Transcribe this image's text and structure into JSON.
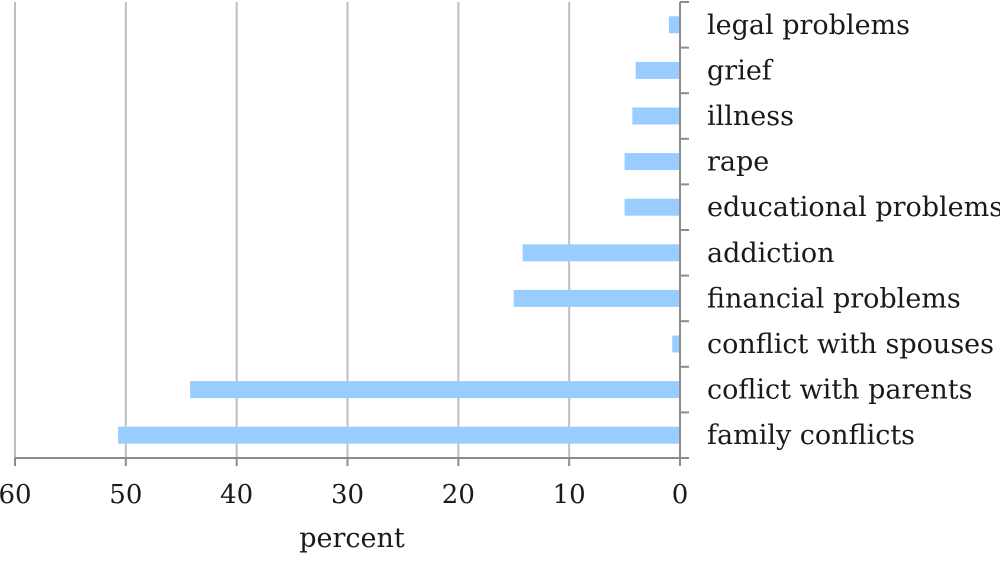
{
  "chart_data": {
    "type": "bar",
    "orientation": "horizontal",
    "x_direction": "reversed",
    "categories": [
      "legal problems",
      "grief",
      "illness",
      "rape",
      "educational problems",
      "addiction",
      "financial problems",
      "conflict with spouses",
      "coflict with parents",
      "family conflicts"
    ],
    "values": [
      1,
      4,
      4.3,
      5,
      5,
      14.2,
      15,
      0.7,
      44.2,
      50.7
    ],
    "xlabel": "percent",
    "xlim": [
      0,
      60
    ],
    "xticks": [
      "60",
      "50",
      "40",
      "30",
      "20",
      "10",
      "0"
    ],
    "grid": "vertical",
    "legend": "none",
    "bar_color": "#99CCFF",
    "grid_color": "#BFBFBF",
    "axis_color": "#8C8C8C"
  }
}
